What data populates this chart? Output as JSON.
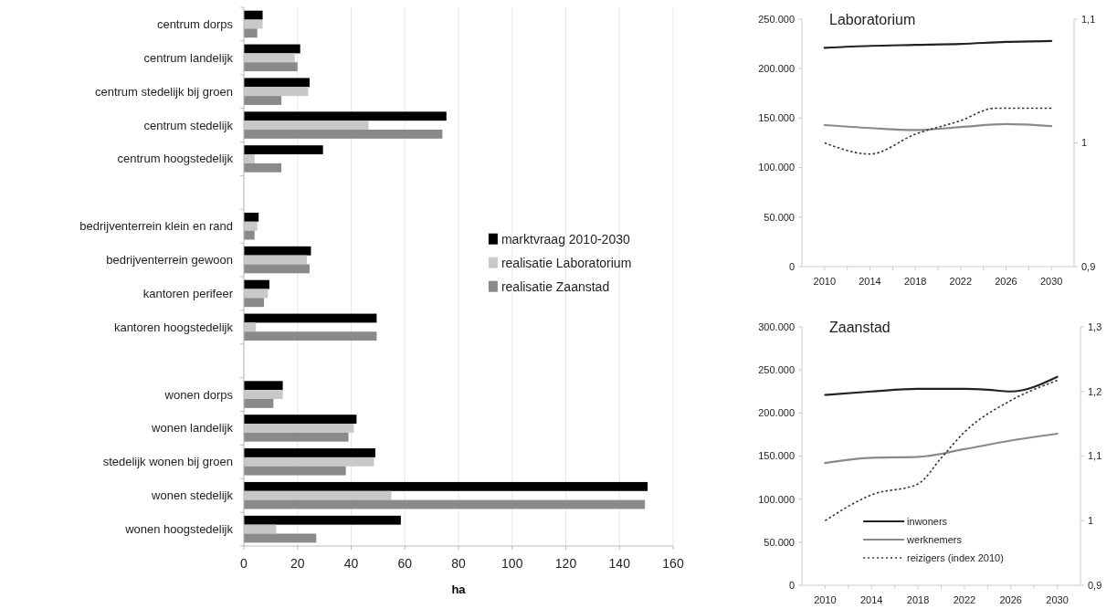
{
  "chart_data": [
    {
      "type": "bar",
      "orientation": "horizontal",
      "xlabel": "ha",
      "categories": [
        "centrum dorps",
        "centrum landelijk",
        "centrum stedelijk bij groen",
        "centrum stedelijk",
        "centrum hoogstedelijk",
        null,
        "bedrijventerrein klein en rand",
        "bedrijventerrein gewoon",
        "kantoren perifeer",
        "kantoren hoogstedelijk",
        null,
        "wonen dorps",
        "wonen landelijk",
        "stedelijk wonen bij groen",
        "wonen stedelijk",
        "wonen hoogstedelijk"
      ],
      "series": [
        {
          "name": "marktvraag 2010-2030",
          "color": "#000000",
          "values": [
            7,
            21,
            24.5,
            75.5,
            29.5,
            null,
            5.5,
            25,
            9.5,
            49.5,
            null,
            14.5,
            42,
            49,
            150.5,
            58.5
          ]
        },
        {
          "name": "realisatie Laboratorium",
          "color": "#c8c8c8",
          "values": [
            7,
            19,
            24,
            46.5,
            4,
            null,
            5,
            23.5,
            9,
            4.5,
            null,
            14.5,
            41,
            48.5,
            55,
            12
          ]
        },
        {
          "name": "realisatie Zaanstad",
          "color": "#8a8a8a",
          "values": [
            5,
            20,
            14,
            74,
            14,
            null,
            4,
            24.5,
            7.5,
            49.5,
            null,
            11,
            39,
            38,
            149.5,
            27
          ]
        }
      ],
      "xlim": [
        0,
        160
      ],
      "xticks": [
        0,
        20,
        40,
        60,
        80,
        100,
        120,
        140,
        160
      ],
      "grid": "x",
      "legend": "right"
    },
    {
      "type": "line",
      "title": "Laboratorium",
      "xlim": [
        2008,
        2032
      ],
      "xticks": [
        2010,
        {
          "value": 2012,
          "label": null
        },
        2014,
        {
          "value": 2016,
          "label": null
        },
        2018,
        {
          "value": 2020,
          "label": null
        },
        2022,
        {
          "value": 2024,
          "label": null
        },
        2026,
        {
          "value": 2028,
          "label": null
        },
        2030
      ],
      "ylim": [
        0,
        250000
      ],
      "yticks": [
        {
          "value": 0,
          "label": "0"
        },
        {
          "value": 50000,
          "label": "50.000"
        },
        {
          "value": 100000,
          "label": "100.000"
        },
        {
          "value": 150000,
          "label": "150.000"
        },
        {
          "value": 200000,
          "label": "200.000"
        },
        {
          "value": 250000,
          "label": "250.000"
        }
      ],
      "y2lim": [
        0.9,
        1.1
      ],
      "y2ticks": [
        {
          "value": 0.9,
          "label": "0,9"
        },
        1,
        {
          "value": 1.1,
          "label": "1,1"
        }
      ],
      "series": [
        {
          "color": "#222222",
          "line_style": "solid",
          "x": [
            2010,
            2014,
            2018,
            2022,
            2026,
            2030
          ],
          "values": [
            221000,
            223000,
            224000,
            225000,
            227000,
            228000
          ]
        },
        {
          "color": "#8a8a8a",
          "line_style": "solid",
          "x": [
            2010,
            2014,
            2018,
            2022,
            2026,
            2030
          ],
          "values": [
            143000,
            140000,
            138000,
            141000,
            144000,
            142000
          ]
        },
        {
          "color": "#333333",
          "line_style": "dotted",
          "axis": "y2",
          "x": [
            2010,
            2014,
            2018,
            2022,
            2025,
            2026,
            2030
          ],
          "values": [
            1.0,
            0.991,
            1.007,
            1.018,
            1.028,
            1.028,
            1.028
          ]
        }
      ],
      "legend": false,
      "grid": false
    },
    {
      "type": "line",
      "title": "Zaanstad",
      "xlim": [
        2008,
        2032
      ],
      "xticks": [
        2010,
        {
          "value": 2012,
          "label": null
        },
        2014,
        {
          "value": 2016,
          "label": null
        },
        2018,
        {
          "value": 2020,
          "label": null
        },
        2022,
        {
          "value": 2024,
          "label": null
        },
        2026,
        {
          "value": 2028,
          "label": null
        },
        2030
      ],
      "ylim": [
        0,
        300000
      ],
      "yticks": [
        {
          "value": 0,
          "label": "0"
        },
        {
          "value": 50000,
          "label": "50.000"
        },
        {
          "value": 100000,
          "label": "100.000"
        },
        {
          "value": 150000,
          "label": "150.000"
        },
        {
          "value": 200000,
          "label": "200.000"
        },
        {
          "value": 250000,
          "label": "250.000"
        },
        {
          "value": 300000,
          "label": "300.000"
        }
      ],
      "y2lim": [
        0.9,
        1.3
      ],
      "y2ticks": [
        {
          "value": 0.9,
          "label": "0,9"
        },
        1,
        {
          "value": 1.1,
          "label": "1,1"
        },
        {
          "value": 1.2,
          "label": "1,2"
        },
        {
          "value": 1.3,
          "label": "1,3"
        }
      ],
      "series": [
        {
          "name": "inwoners",
          "color": "#222222",
          "line_style": "solid",
          "x": [
            2010,
            2014,
            2018,
            2022,
            2024,
            2026,
            2030
          ],
          "values": [
            221000,
            225000,
            228000,
            228000,
            227000,
            225000,
            242000
          ]
        },
        {
          "name": "werknemers",
          "color": "#8a8a8a",
          "line_style": "solid",
          "x": [
            2010,
            2014,
            2018,
            2022,
            2026,
            2030
          ],
          "values": [
            142000,
            148000,
            149000,
            158000,
            168000,
            176000
          ]
        },
        {
          "name": "reizigers (index 2010)",
          "color": "#333333",
          "line_style": "dotted",
          "axis": "y2",
          "x": [
            2010,
            2014,
            2018,
            2020,
            2022,
            2026,
            2030
          ],
          "values": [
            1.0,
            1.04,
            1.057,
            1.097,
            1.137,
            1.186,
            1.217
          ]
        }
      ],
      "legend": "bottom",
      "grid": false
    }
  ]
}
